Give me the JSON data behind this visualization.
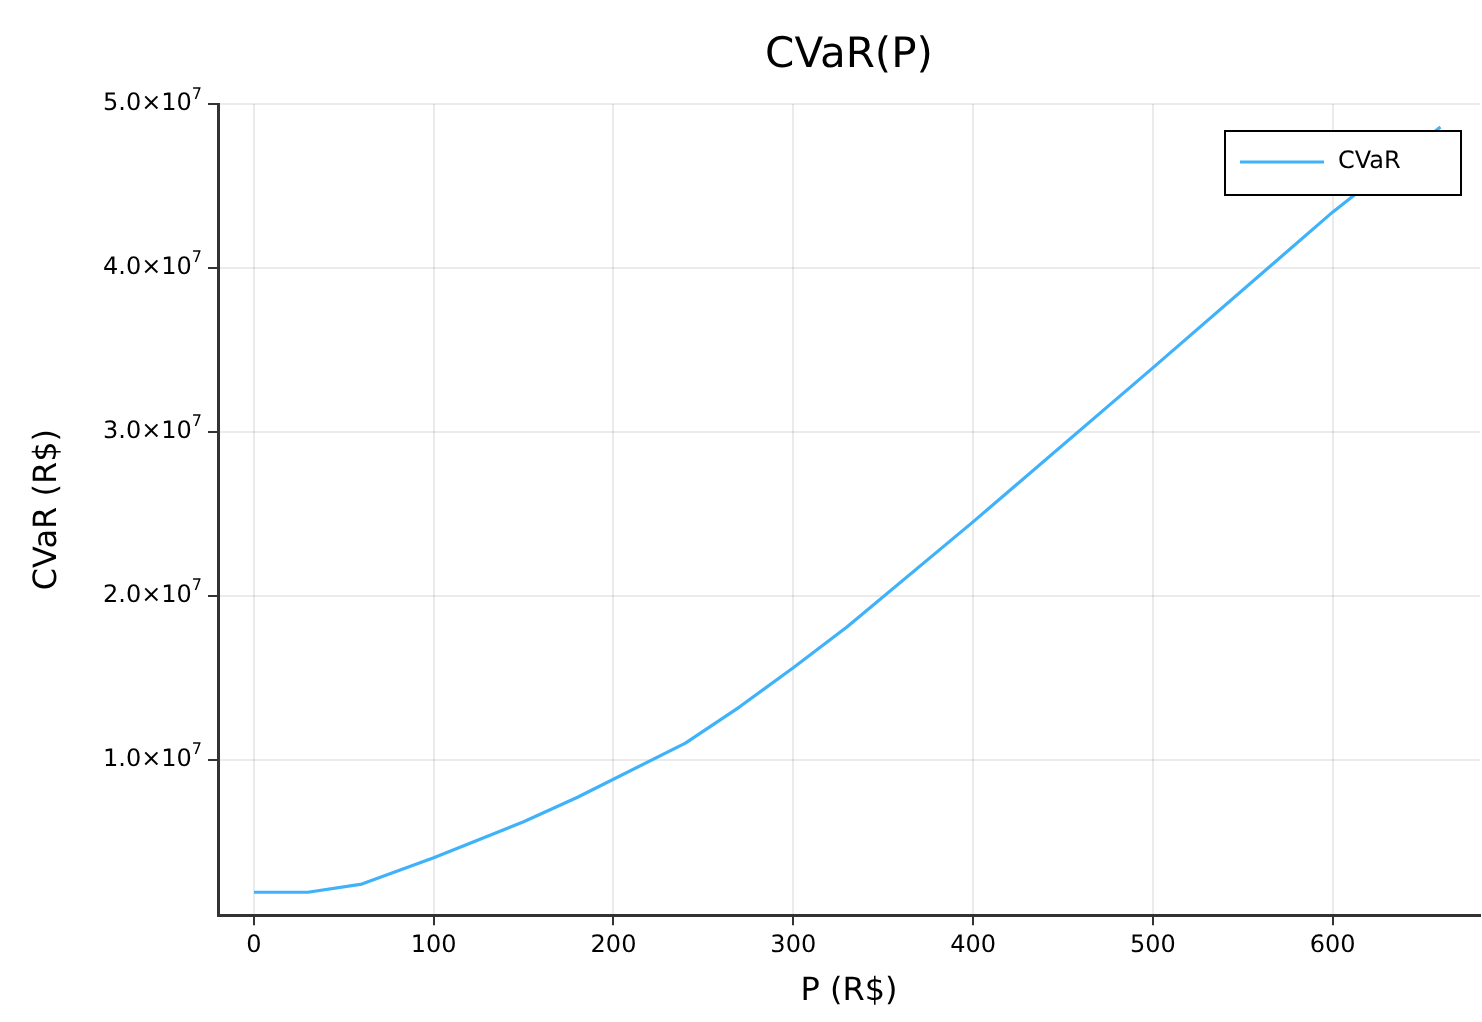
{
  "chart_data": {
    "type": "line",
    "title": "CVaR(P)",
    "xlabel": "P (R$)",
    "ylabel": "CVaR (R$)",
    "x": [
      0,
      30,
      60,
      100,
      150,
      180,
      240,
      270,
      300,
      330,
      400,
      500,
      600,
      660
    ],
    "series": [
      {
        "name": "CVaR",
        "color": "#3fb2fa",
        "values": [
          1900000,
          1900000,
          2400000,
          4000000,
          6200000,
          7700000,
          11000000,
          13200000,
          15600000,
          18100000,
          24500000,
          33900000,
          43400000,
          48600000
        ]
      }
    ],
    "xlim": [
      -20,
      682
    ],
    "xticks": [
      0,
      100,
      200,
      300,
      400,
      500,
      600
    ],
    "ylim": [
      500000,
      50000000
    ],
    "yticks": [
      {
        "value": 10000000,
        "label": "1.0×10$^{7}$"
      },
      {
        "value": 20000000,
        "label": "2.0×10$^{7}$"
      },
      {
        "value": 30000000,
        "label": "3.0×10$^{7}$"
      },
      {
        "value": 40000000,
        "label": "4.0×10$^{7}$"
      },
      {
        "value": 50000000,
        "label": "5.0×10$^{7}$"
      }
    ],
    "grid": true,
    "legend": "top right",
    "line_style": "solid",
    "marker": "none"
  }
}
